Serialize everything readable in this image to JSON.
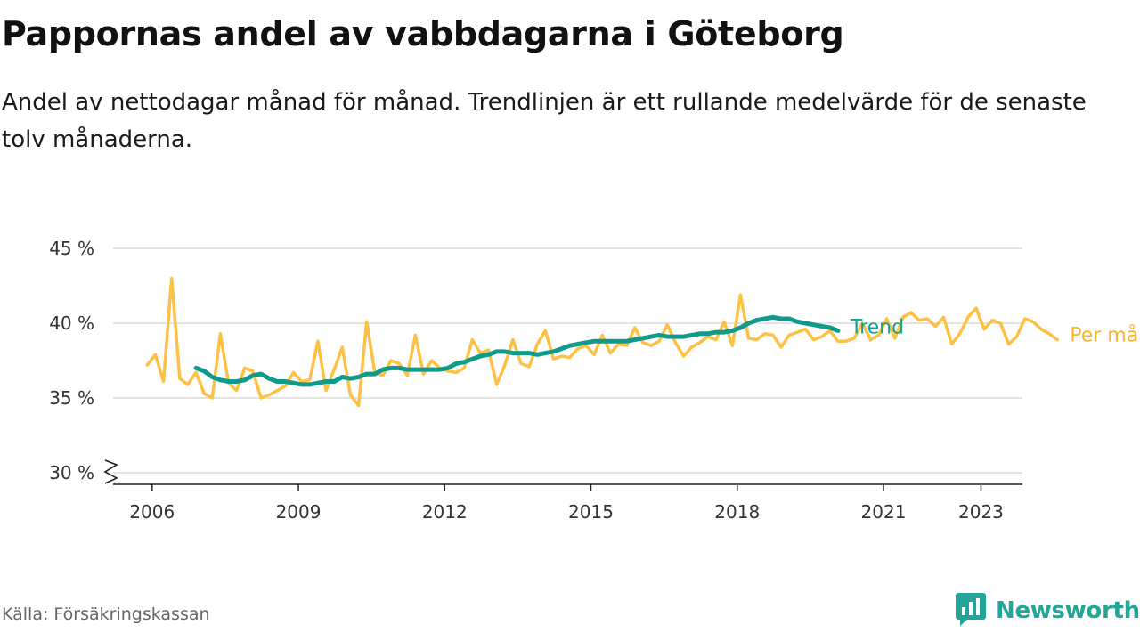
{
  "title": "Pappornas andel av vabbdagarna i Göteborg",
  "subtitle": "Andel av nettodagar månad för månad. Trendlinjen är ett rullande medelvärde för de senaste tolv månaderna.",
  "source": "Källa: Försäkringskassan",
  "brand": {
    "name": "Newsworthy",
    "icon": "newsworthy-chat-chart-icon",
    "color": "#25a59a"
  },
  "chart_data": {
    "type": "line",
    "title": "Pappornas andel av vabbdagarna i Göteborg",
    "subtitle": "Andel av nettodagar månad för månad. Trendlinjen är ett rullande medelvärde för de senaste tolv månaderna.",
    "xlabel": "",
    "ylabel": "",
    "y_unit": "%",
    "ylim": [
      30,
      45
    ],
    "y_axis_break": true,
    "y_ticks": [
      30,
      35,
      40,
      45
    ],
    "y_tick_labels": [
      "30 %",
      "35 %",
      "40 %",
      "45 %"
    ],
    "x_ticks": [
      2006,
      2009,
      2012,
      2015,
      2018,
      2021,
      2023
    ],
    "x_tick_labels": [
      "2006",
      "2009",
      "2012",
      "2015",
      "2018",
      "2021",
      "2023"
    ],
    "xlim": [
      2005.2,
      2023.85
    ],
    "grid": "horizontal",
    "legend": "direct labels at line ends",
    "series": [
      {
        "name": "Trend",
        "color": "#0f9a8c",
        "label_color": "#13a396",
        "x_start": 2006.9,
        "step_months": 2,
        "values": [
          37.0,
          36.8,
          36.4,
          36.2,
          36.1,
          36.1,
          36.2,
          36.5,
          36.6,
          36.3,
          36.1,
          36.1,
          36.0,
          35.9,
          35.9,
          36.0,
          36.1,
          36.1,
          36.4,
          36.3,
          36.4,
          36.6,
          36.6,
          36.9,
          37.0,
          37.0,
          36.9,
          36.9,
          36.9,
          36.9,
          36.9,
          37.0,
          37.3,
          37.4,
          37.6,
          37.8,
          37.9,
          38.1,
          38.1,
          38.0,
          38.0,
          38.0,
          37.9,
          38.0,
          38.1,
          38.3,
          38.5,
          38.6,
          38.7,
          38.8,
          38.8,
          38.8,
          38.8,
          38.8,
          38.9,
          39.0,
          39.1,
          39.2,
          39.1,
          39.1,
          39.1,
          39.2,
          39.3,
          39.3,
          39.4,
          39.4,
          39.5,
          39.7,
          40.0,
          40.2,
          40.3,
          40.4,
          40.3,
          40.3,
          40.1,
          40.0,
          39.9,
          39.8,
          39.7,
          39.5
        ]
      },
      {
        "name": "Per månad",
        "color": "#fcc145",
        "label_color": "#f8b62c",
        "x_start": 2005.9,
        "step_months": 2,
        "values": [
          37.2,
          37.9,
          36.1,
          43.0,
          36.3,
          35.9,
          36.7,
          35.3,
          35.0,
          39.3,
          36.0,
          35.5,
          37.0,
          36.8,
          35.0,
          35.2,
          35.5,
          35.8,
          36.7,
          36.1,
          36.2,
          38.8,
          35.5,
          36.9,
          38.4,
          35.2,
          34.5,
          40.1,
          36.7,
          36.5,
          37.5,
          37.3,
          36.5,
          39.2,
          36.6,
          37.5,
          37.0,
          36.8,
          36.7,
          37.0,
          38.9,
          38.0,
          38.2,
          35.9,
          37.2,
          38.9,
          37.3,
          37.1,
          38.6,
          39.5,
          37.6,
          37.8,
          37.7,
          38.3,
          38.5,
          37.9,
          39.2,
          38.0,
          38.6,
          38.5,
          39.7,
          38.7,
          38.5,
          38.8,
          39.9,
          38.7,
          37.8,
          38.4,
          38.7,
          39.1,
          38.9,
          40.1,
          38.5,
          41.9,
          39.0,
          38.9,
          39.3,
          39.2,
          38.4,
          39.2,
          39.4,
          39.6,
          38.9,
          39.1,
          39.5,
          38.8,
          38.8,
          39.0,
          40.0,
          38.9,
          39.2,
          40.3,
          39.0,
          40.4,
          40.7,
          40.2,
          40.3,
          39.8,
          40.4,
          38.6,
          39.3,
          40.4,
          41.0,
          39.6,
          40.2,
          40.0,
          38.6,
          39.1,
          40.3,
          40.1,
          39.6,
          39.3,
          38.9
        ]
      }
    ]
  }
}
